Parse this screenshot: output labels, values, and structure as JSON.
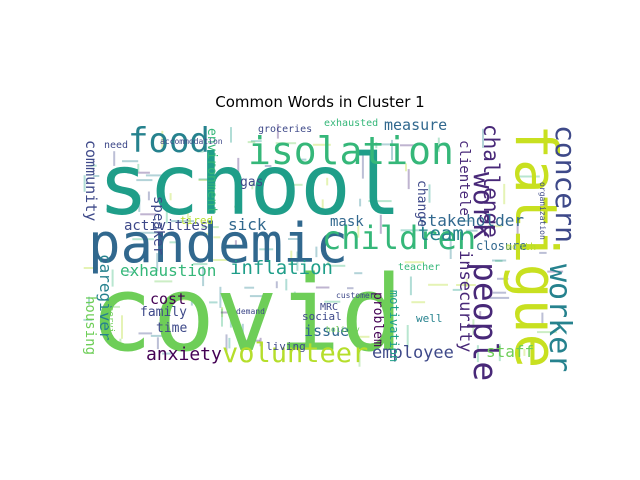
{
  "chart_data": {
    "type": "wordcloud",
    "title": "Common Words in Cluster 1",
    "words": [
      {
        "text": "school",
        "rank": 1,
        "color": "#1f9e89"
      },
      {
        "text": "covid",
        "rank": 2,
        "color": "#6ece58"
      },
      {
        "text": "pandemic",
        "rank": 3,
        "color": "#31688e"
      },
      {
        "text": "fatigue",
        "rank": 4,
        "color": "#c8e020"
      },
      {
        "text": "isolation",
        "rank": 5,
        "color": "#35b779"
      },
      {
        "text": "food",
        "rank": 6,
        "color": "#26828e"
      },
      {
        "text": "children",
        "rank": 7,
        "color": "#35b779"
      },
      {
        "text": "people",
        "rank": 8,
        "color": "#482878"
      },
      {
        "text": "concern",
        "rank": 9,
        "color": "#3e4989"
      },
      {
        "text": "work",
        "rank": 10,
        "color": "#482878"
      },
      {
        "text": "worker",
        "rank": 11,
        "color": "#26828e"
      },
      {
        "text": "volunteer",
        "rank": 12,
        "color": "#b5de2b"
      },
      {
        "text": "anxiety",
        "rank": 13,
        "color": "#440154"
      },
      {
        "text": "inflation",
        "rank": 14,
        "color": "#1f9e89"
      },
      {
        "text": "exhaustion",
        "rank": 15,
        "color": "#35b779"
      },
      {
        "text": "employee",
        "rank": 16,
        "color": "#3e4989"
      },
      {
        "text": "challenge",
        "rank": 17,
        "color": "#482878"
      },
      {
        "text": "team",
        "rank": 18,
        "color": "#26828e"
      },
      {
        "text": "stakeholder",
        "rank": 19,
        "color": "#31688e"
      },
      {
        "text": "measure",
        "rank": 20,
        "color": "#31688e"
      },
      {
        "text": "community",
        "rank": 21,
        "color": "#3e4989"
      },
      {
        "text": "caregiver",
        "rank": 22,
        "color": "#26828e"
      },
      {
        "text": "activities",
        "rank": 23,
        "color": "#3e4989"
      },
      {
        "text": "sick",
        "rank": 24,
        "color": "#31688e"
      },
      {
        "text": "mask",
        "rank": 25,
        "color": "#31688e"
      },
      {
        "text": "cost",
        "rank": 26,
        "color": "#440154"
      },
      {
        "text": "staff",
        "rank": 27,
        "color": "#6ece58"
      },
      {
        "text": "insecurity",
        "rank": 28,
        "color": "#482878"
      },
      {
        "text": "housing",
        "rank": 29,
        "color": "#6ece58"
      },
      {
        "text": "issue",
        "rank": 30,
        "color": "#31688e"
      },
      {
        "text": "speaker",
        "rank": 31,
        "color": "#3e4989"
      },
      {
        "text": "environment",
        "rank": 32,
        "color": "#35b779"
      },
      {
        "text": "clientele",
        "rank": 33,
        "color": "#482878"
      },
      {
        "text": "change",
        "rank": 34,
        "color": "#3e4989"
      },
      {
        "text": "problem",
        "rank": 35,
        "color": "#440154"
      },
      {
        "text": "motivation",
        "rank": 36,
        "color": "#1f9e89"
      },
      {
        "text": "family",
        "rank": 37,
        "color": "#3e4989"
      },
      {
        "text": "time",
        "rank": 38,
        "color": "#3e4989"
      },
      {
        "text": "closure",
        "rank": 39,
        "color": "#31688e"
      },
      {
        "text": "gas",
        "rank": 40,
        "color": "#3e4989"
      },
      {
        "text": "tired",
        "rank": 41,
        "color": "#b5de2b"
      },
      {
        "text": "living",
        "rank": 42,
        "color": "#3e4989"
      },
      {
        "text": "social",
        "rank": 43,
        "color": "#3e4989"
      },
      {
        "text": "well",
        "rank": 44,
        "color": "#26828e"
      },
      {
        "text": "groceries",
        "rank": 45,
        "color": "#3e4989"
      },
      {
        "text": "exhausted",
        "rank": 46,
        "color": "#35b779"
      },
      {
        "text": "need",
        "rank": 47,
        "color": "#3e4989"
      },
      {
        "text": "teacher",
        "rank": 48,
        "color": "#35b779"
      },
      {
        "text": "month",
        "rank": 49,
        "color": "#b5de2b"
      },
      {
        "text": "MRC",
        "rank": 50,
        "color": "#3e4989"
      },
      {
        "text": "service",
        "rank": 51,
        "color": "#6ece58"
      },
      {
        "text": "accommodation",
        "rank": 52,
        "color": "#3e4989"
      },
      {
        "text": "customer",
        "rank": 53,
        "color": "#3e4989"
      },
      {
        "text": "demand",
        "rank": 54,
        "color": "#3e4989"
      },
      {
        "text": "holiday",
        "rank": 55,
        "color": "#6ece58"
      },
      {
        "text": "organization",
        "rank": 56,
        "color": "#3e4989"
      }
    ]
  }
}
